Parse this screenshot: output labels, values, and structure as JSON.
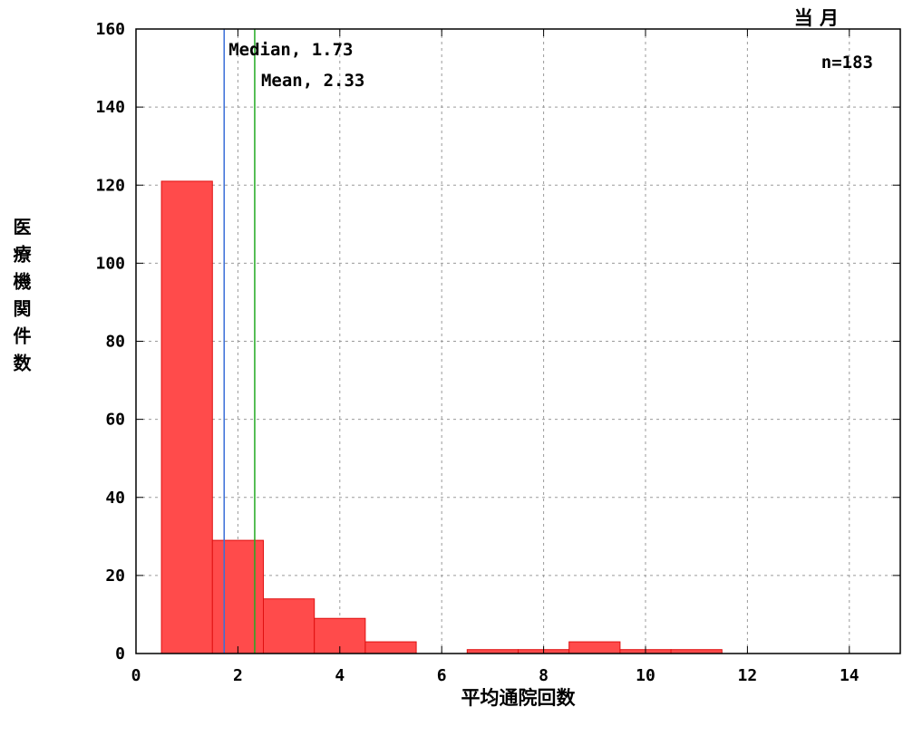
{
  "chart_data": {
    "type": "bar",
    "title": "当 月",
    "xlabel": "平均通院回数",
    "ylabel": "医療機関件数",
    "xlim": [
      0,
      15
    ],
    "ylim": [
      0,
      160
    ],
    "xticks": [
      0,
      2,
      4,
      6,
      8,
      10,
      12,
      14
    ],
    "yticks": [
      0,
      20,
      40,
      60,
      80,
      100,
      120,
      140,
      160
    ],
    "grid": true,
    "bin_width": 1,
    "bins": [
      {
        "x": 1,
        "value": 121
      },
      {
        "x": 2,
        "value": 29
      },
      {
        "x": 3,
        "value": 14
      },
      {
        "x": 4,
        "value": 9
      },
      {
        "x": 5,
        "value": 3
      },
      {
        "x": 6,
        "value": 0
      },
      {
        "x": 7,
        "value": 1
      },
      {
        "x": 8,
        "value": 1
      },
      {
        "x": 9,
        "value": 3
      },
      {
        "x": 10,
        "value": 1
      },
      {
        "x": 11,
        "value": 1
      },
      {
        "x": 12,
        "value": 0
      },
      {
        "x": 13,
        "value": 0
      },
      {
        "x": 14,
        "value": 0
      }
    ],
    "bar_color": "#ff4b4b",
    "bar_edge_color": "#e01010",
    "reference_lines": [
      {
        "label": "Median, 1.73",
        "value": 1.73,
        "color": "#3a6ed8"
      },
      {
        "label": "Mean, 2.33",
        "value": 2.33,
        "color": "#22aa22"
      }
    ],
    "annotation": "n=183"
  }
}
